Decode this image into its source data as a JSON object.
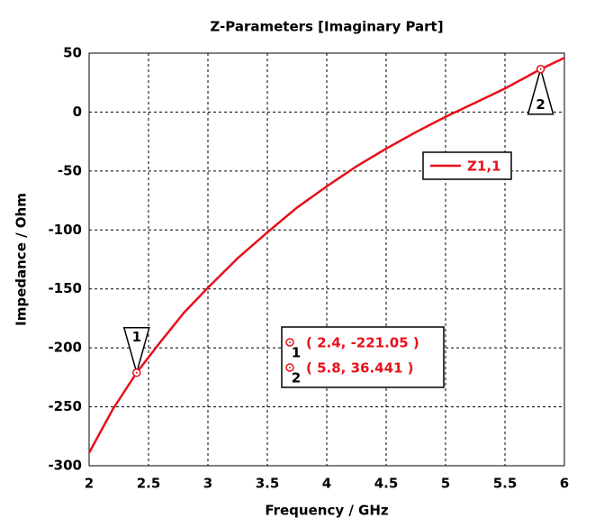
{
  "chart_data": {
    "type": "line",
    "title": "Z-Parameters [Imaginary Part]",
    "x_label": "Frequency / GHz",
    "y_label": "Impedance / Ohm",
    "x": [
      2,
      2.2,
      2.4,
      2.6,
      2.8,
      3,
      3.25,
      3.5,
      3.75,
      4,
      4.25,
      4.5,
      4.75,
      5,
      5.25,
      5.5,
      5.8,
      6
    ],
    "series": [
      {
        "name": "Z1,1",
        "color": "#e8101a",
        "values": [
          -289,
          -252,
          -221.05,
          -195,
          -170,
          -149,
          -124,
          -102,
          -81,
          -63,
          -46,
          -31,
          -17,
          -4,
          8,
          20,
          36.441,
          46
        ]
      }
    ],
    "xlim": [
      2,
      6
    ],
    "xticks": [
      2,
      2.5,
      3,
      3.5,
      4,
      4.5,
      5,
      5.5,
      6
    ],
    "ylim": [
      -300,
      50
    ],
    "yticks": [
      50,
      0,
      -50,
      -100,
      -150,
      -200,
      -250,
      -300
    ],
    "grid": true,
    "legend": "upper right",
    "markers": [
      {
        "label": "1",
        "x": 2.4,
        "y": -221.05,
        "text": "( 2.4, -221.05 )"
      },
      {
        "label": "2",
        "x": 5.8,
        "y": 36.441,
        "text": "( 5.8, 36.441 )"
      }
    ]
  }
}
